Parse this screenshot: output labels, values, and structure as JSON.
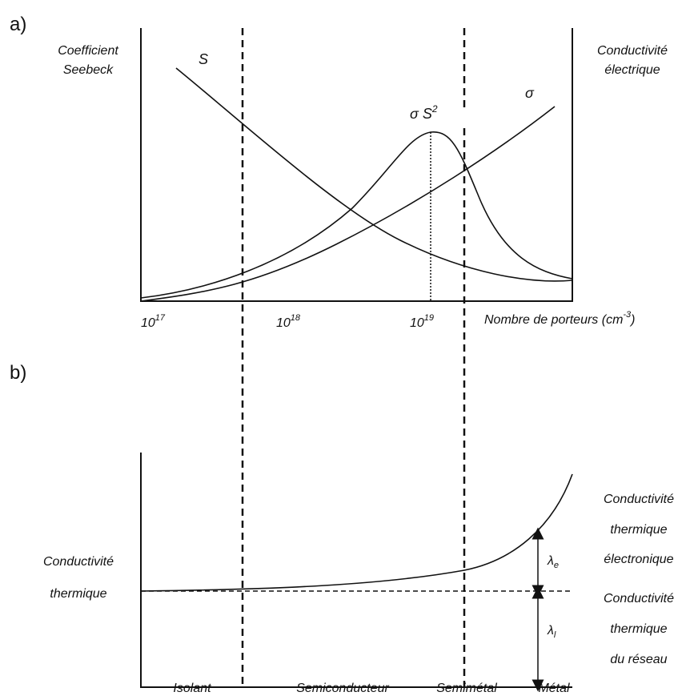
{
  "panel_a": {
    "label": "a)",
    "left_axis_label": [
      "Coefficient",
      "Seebeck"
    ],
    "right_axis_label": [
      "Conductivité",
      "électrique"
    ],
    "curve_labels": {
      "seebeck": "S",
      "power_factor": {
        "base": "σ S",
        "exp": "2"
      },
      "conductivity": "σ"
    },
    "x_ticks": [
      {
        "base": "10",
        "exp": "17"
      },
      {
        "base": "10",
        "exp": "18"
      },
      {
        "base": "10",
        "exp": "19"
      }
    ],
    "x_axis_label": {
      "text": "Nombre de porteurs (cm",
      "exp": "-3",
      "close": ")"
    }
  },
  "panel_b": {
    "label": "b)",
    "left_axis_label": [
      "Conductivité",
      "thermique"
    ],
    "right_upper_label": [
      "Conductivité",
      "thermique",
      "électronique"
    ],
    "right_lower_label": [
      "Conductivité",
      "thermique",
      "du réseau"
    ],
    "lambda_e": {
      "base": "λ",
      "sub": "e"
    },
    "lambda_l": {
      "base": "λ",
      "sub": "l"
    },
    "regions": [
      "Isolant",
      "Semiconducteur",
      "Semimétal",
      "Métal"
    ]
  }
}
